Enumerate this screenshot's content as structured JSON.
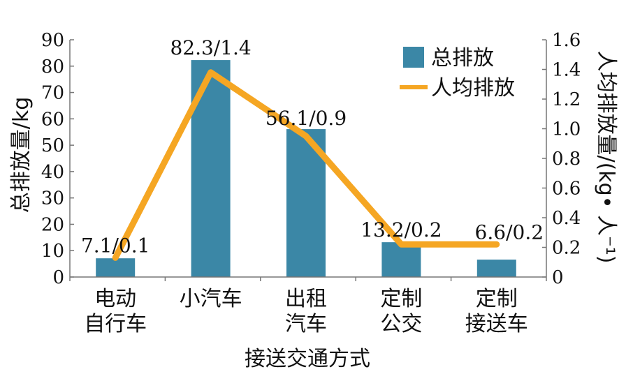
{
  "chart_data": {
    "type": "bar",
    "categories": [
      [
        "电动",
        "自行车"
      ],
      [
        "小汽车"
      ],
      [
        "出租",
        "汽车"
      ],
      [
        "定制",
        "公交"
      ],
      [
        "定制",
        "接送车"
      ]
    ],
    "series": [
      {
        "name": "总排放",
        "type": "bar",
        "axis": "left",
        "color": "#3b87a6",
        "values": [
          7.1,
          82.3,
          56.1,
          13.2,
          6.6
        ]
      },
      {
        "name": "人均排放",
        "type": "line",
        "axis": "right",
        "color": "#f5a623",
        "values": [
          0.13,
          1.38,
          0.95,
          0.22,
          0.22
        ]
      }
    ],
    "data_labels": [
      "7.1/0.1",
      "82.3/1.4",
      "56.1/0.9",
      "13.2/0.2",
      "6.6/0.2"
    ],
    "xlabel": "接送交通方式",
    "ylabel": "总排放量/kg",
    "ylabel_right": "人均排放量/(kg• 人⁻¹)",
    "ylim": [
      0,
      90
    ],
    "ylim_right": [
      0,
      1.6
    ],
    "yticks": [
      0,
      10,
      20,
      30,
      40,
      50,
      60,
      70,
      80,
      90
    ],
    "yticks_right": [
      "0",
      "0.2",
      "0.4",
      "0.6",
      "0.8",
      "1.0",
      "1.2",
      "1.4",
      "1.6"
    ],
    "legend_position": "top-right",
    "grid": false
  }
}
